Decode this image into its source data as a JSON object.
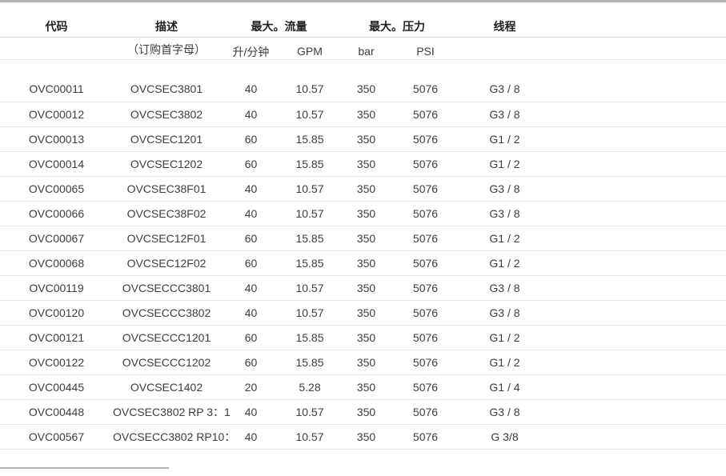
{
  "page": {
    "background": "#ffffff",
    "top_bar_color": "#b0b4b6",
    "bottom_rule_color": "#a9b7bf",
    "text_color": "#3d3d3d",
    "header_text_color": "#1f1f1f"
  },
  "table": {
    "headers": {
      "code": "代码",
      "description": "描述",
      "max_flow": "最大。流量",
      "max_pressure": "最大。压力",
      "thread": "线程"
    },
    "subheaders": {
      "order_prefix": "（订购首字母）",
      "l_min": "升/分钟",
      "gpm": "GPM",
      "bar": "bar",
      "psi": "PSI"
    },
    "rows": [
      {
        "code": "OVC00011",
        "description": "OVCSEC3801",
        "l_min": "40",
        "gpm": "10.57",
        "bar": "350",
        "psi": "5076",
        "thread": "G3 / 8"
      },
      {
        "code": "OVC00012",
        "description": "OVCSEC3802",
        "l_min": "40",
        "gpm": "10.57",
        "bar": "350",
        "psi": "5076",
        "thread": "G3 / 8"
      },
      {
        "code": "OVC00013",
        "description": "OVCSEC1201",
        "l_min": "60",
        "gpm": "15.85",
        "bar": "350",
        "psi": "5076",
        "thread": "G1 / 2"
      },
      {
        "code": "OVC00014",
        "description": "OVCSEC1202",
        "l_min": "60",
        "gpm": "15.85",
        "bar": "350",
        "psi": "5076",
        "thread": "G1 / 2"
      },
      {
        "code": "OVC00065",
        "description": "OVCSEC38F01",
        "l_min": "40",
        "gpm": "10.57",
        "bar": "350",
        "psi": "5076",
        "thread": "G3 / 8"
      },
      {
        "code": "OVC00066",
        "description": "OVCSEC38F02",
        "l_min": "40",
        "gpm": "10.57",
        "bar": "350",
        "psi": "5076",
        "thread": "G3 / 8"
      },
      {
        "code": "OVC00067",
        "description": "OVCSEC12F01",
        "l_min": "60",
        "gpm": "15.85",
        "bar": "350",
        "psi": "5076",
        "thread": "G1 / 2"
      },
      {
        "code": "OVC00068",
        "description": "OVCSEC12F02",
        "l_min": "60",
        "gpm": "15.85",
        "bar": "350",
        "psi": "5076",
        "thread": "G1 / 2"
      },
      {
        "code": "OVC00119",
        "description": "OVCSECCC3801",
        "l_min": "40",
        "gpm": "10.57",
        "bar": "350",
        "psi": "5076",
        "thread": "G3 / 8"
      },
      {
        "code": "OVC00120",
        "description": "OVCSECCC3802",
        "l_min": "40",
        "gpm": "10.57",
        "bar": "350",
        "psi": "5076",
        "thread": "G3 / 8"
      },
      {
        "code": "OVC00121",
        "description": "OVCSECCC1201",
        "l_min": "60",
        "gpm": "15.85",
        "bar": "350",
        "psi": "5076",
        "thread": "G1 / 2"
      },
      {
        "code": "OVC00122",
        "description": "OVCSECCC1202",
        "l_min": "60",
        "gpm": "15.85",
        "bar": "350",
        "psi": "5076",
        "thread": "G1 / 2"
      },
      {
        "code": "OVC00445",
        "description": "OVCSEC1402",
        "l_min": "20",
        "gpm": "5.28",
        "bar": "350",
        "psi": "5076",
        "thread": "G1 / 4"
      },
      {
        "code": "OVC00448",
        "description": "OVCSEC3802 RP 3：1",
        "l_min": "40",
        "gpm": "10.57",
        "bar": "350",
        "psi": "5076",
        "thread": "G3 / 8"
      },
      {
        "code": "OVC00567",
        "description": "OVCSECC3802 RP10：",
        "l_min": "40",
        "gpm": "10.57",
        "bar": "350",
        "psi": "5076",
        "thread": "G 3/8"
      }
    ]
  }
}
